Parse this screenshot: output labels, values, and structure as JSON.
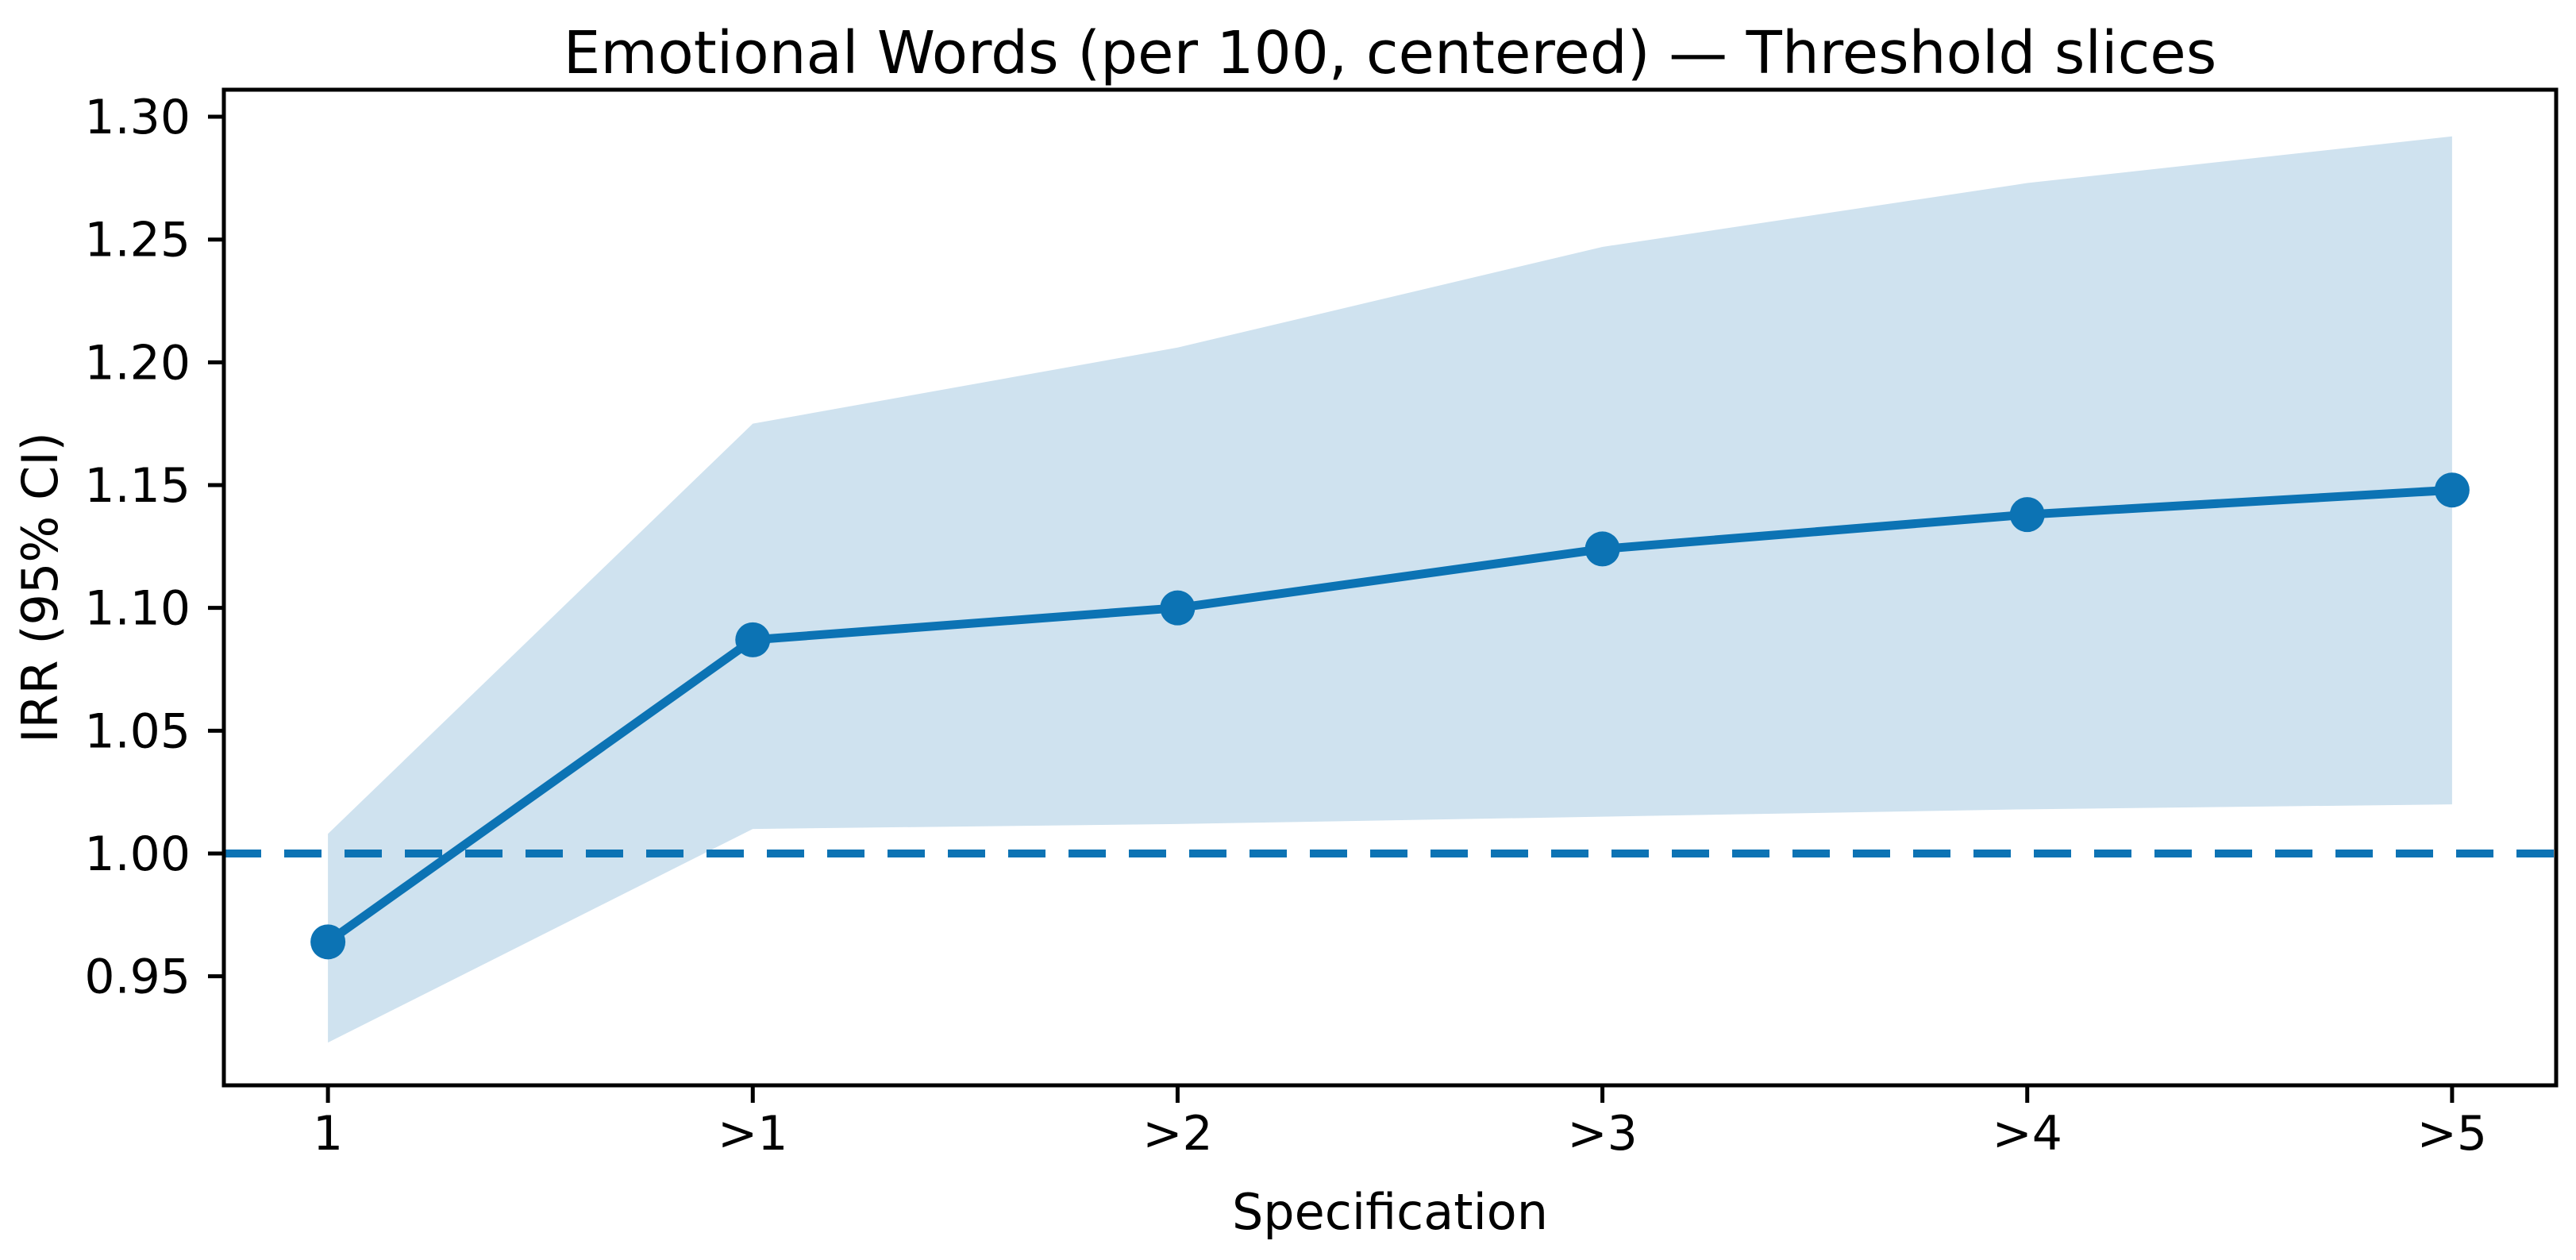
{
  "figure": {
    "background": "#ffffff"
  },
  "chart_data": {
    "type": "line",
    "title": "Emotional Words (per 100, centered) — Threshold slices",
    "xlabel": "Specification",
    "ylabel": "IRR (95% CI)",
    "categories": [
      "1",
      ">1",
      ">2",
      ">3",
      ">4",
      ">5"
    ],
    "series": [
      {
        "name": "IRR point estimate",
        "values": [
          0.964,
          1.087,
          1.1,
          1.124,
          1.138,
          1.148
        ]
      },
      {
        "name": "95% CI lower",
        "values": [
          0.923,
          1.01,
          1.012,
          1.015,
          1.018,
          1.02
        ]
      },
      {
        "name": "95% CI upper",
        "values": [
          1.008,
          1.175,
          1.206,
          1.247,
          1.273,
          1.292
        ]
      }
    ],
    "reference_line_y": 1.0,
    "reference_line_style": "dashed",
    "y_tick_labels": [
      "0.95",
      "1.00",
      "1.05",
      "1.10",
      "1.15",
      "1.20",
      "1.25",
      "1.30"
    ],
    "ylim": [
      0.906,
      1.311
    ],
    "grid": false,
    "legend_position": "none",
    "colors": {
      "line": "#0c73b4",
      "marker": "#0c73b4",
      "band": "#cfe2ef",
      "reference": "#0c73b4",
      "spine": "#000000",
      "text": "#000000"
    }
  }
}
